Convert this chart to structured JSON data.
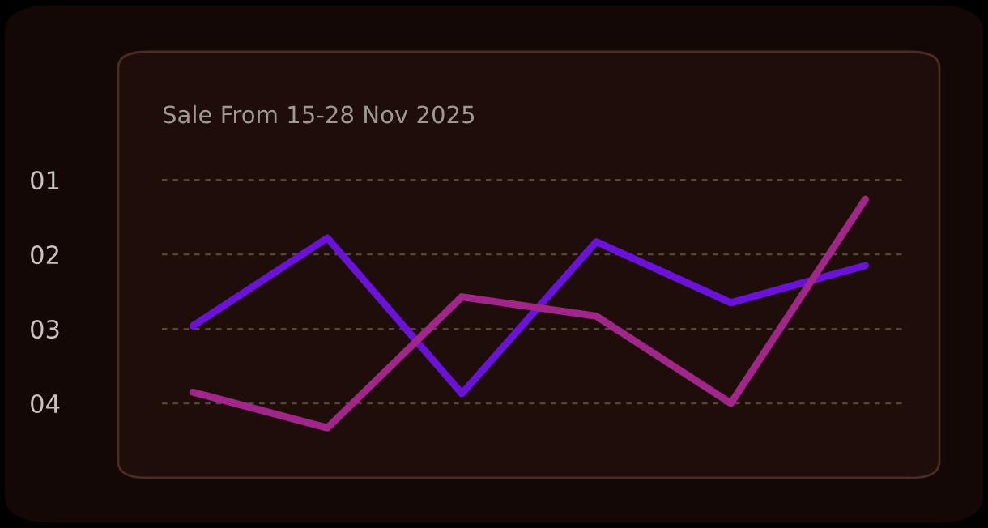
{
  "chart_data": {
    "type": "line",
    "title": "Sale From 15-28 Nov 2025",
    "categories": [
      null,
      null,
      null,
      null,
      null,
      null
    ],
    "series": [
      {
        "color": "#6a12d8",
        "values": [
          2.96,
          1.78,
          3.87,
          1.83,
          2.65,
          2.15
        ]
      },
      {
        "color": "#a0268a",
        "values": [
          3.85,
          4.33,
          2.57,
          2.83,
          4.0,
          1.26
        ]
      }
    ],
    "ylim": [
      5.0,
      -0.72
    ],
    "yticks": [
      {
        "value": 1,
        "label": "01"
      },
      {
        "value": 2,
        "label": "02"
      },
      {
        "value": 3,
        "label": "03"
      },
      {
        "value": 4,
        "label": "04"
      }
    ],
    "tick_labels": "y",
    "grid": "y",
    "marker": "none",
    "line_style": "solid"
  }
}
